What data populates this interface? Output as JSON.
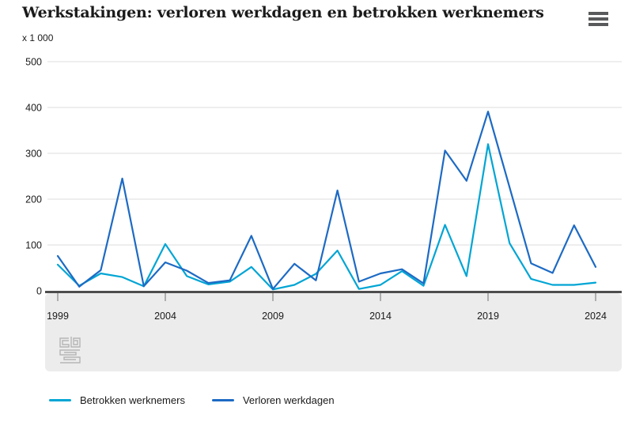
{
  "header": {
    "title": "Werkstakingen: verloren werkdagen en betrokken werknemers",
    "unit_label": "x 1 000"
  },
  "colors": {
    "betrokken_werknemers": "#00a5d4",
    "verloren_werkdagen": "#1d6ac4",
    "gridline": "#dcdcdc",
    "zero_line": "#4d4d4d",
    "axis_band": "#ececec",
    "tick": "#8c8c8c",
    "text": "#1a1a1a",
    "menu_icon": "#58595b",
    "logo": "#b5b5b5"
  },
  "legend": [
    {
      "label": "Betrokken werknemers",
      "color_key": "betrokken_werknemers"
    },
    {
      "label": "Verloren werkdagen",
      "color_key": "verloren_werkdagen"
    }
  ],
  "chart_data": {
    "type": "line",
    "title": "Werkstakingen: verloren werkdagen en betrokken werknemers",
    "unit": "x 1 000",
    "x": [
      1999,
      2000,
      2001,
      2002,
      2003,
      2004,
      2005,
      2006,
      2007,
      2008,
      2009,
      2010,
      2011,
      2012,
      2013,
      2014,
      2015,
      2016,
      2017,
      2018,
      2019,
      2020,
      2021,
      2022,
      2023,
      2024
    ],
    "x_ticks": [
      1999,
      2004,
      2009,
      2014,
      2019,
      2024
    ],
    "y_ticks": [
      0,
      100,
      200,
      300,
      400,
      500
    ],
    "ylim": [
      0,
      500
    ],
    "grid": true,
    "legend_position": "bottom",
    "series": [
      {
        "name": "Betrokken werknemers",
        "color_key": "betrokken_werknemers",
        "values": [
          57,
          11,
          38,
          30,
          10,
          102,
          32,
          14,
          20,
          52,
          3,
          13,
          37,
          88,
          4,
          13,
          43,
          11,
          144,
          32,
          320,
          104,
          26,
          13,
          13,
          18
        ]
      },
      {
        "name": "Verloren werkdagen",
        "color_key": "verloren_werkdagen",
        "values": [
          76,
          9,
          45,
          245,
          10,
          62,
          44,
          17,
          23,
          120,
          4,
          59,
          23,
          219,
          20,
          38,
          47,
          16,
          306,
          240,
          391,
          226,
          60,
          39,
          143,
          52
        ]
      }
    ]
  }
}
